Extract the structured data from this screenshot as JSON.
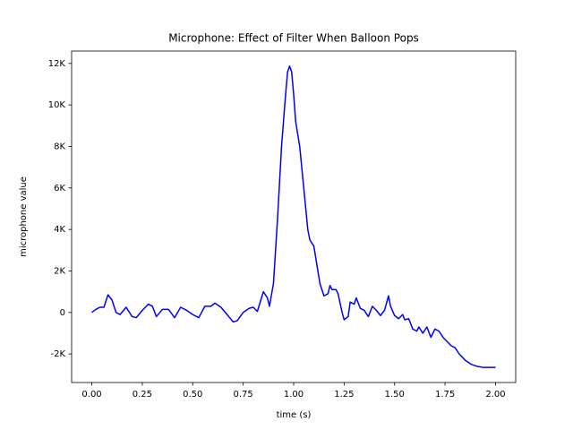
{
  "chart_data": {
    "type": "line",
    "title": "Microphone: Effect of Filter When Balloon Pops",
    "xlabel": "time (s)",
    "ylabel": "microphone value",
    "x": [
      0.0,
      0.02,
      0.04,
      0.06,
      0.08,
      0.1,
      0.12,
      0.14,
      0.17,
      0.2,
      0.22,
      0.25,
      0.28,
      0.3,
      0.32,
      0.35,
      0.38,
      0.41,
      0.44,
      0.47,
      0.5,
      0.53,
      0.56,
      0.59,
      0.61,
      0.64,
      0.67,
      0.7,
      0.72,
      0.75,
      0.78,
      0.8,
      0.82,
      0.85,
      0.87,
      0.88,
      0.9,
      0.92,
      0.94,
      0.96,
      0.97,
      0.98,
      0.99,
      1.0,
      1.01,
      1.03,
      1.05,
      1.07,
      1.08,
      1.1,
      1.12,
      1.13,
      1.15,
      1.17,
      1.18,
      1.19,
      1.21,
      1.22,
      1.24,
      1.25,
      1.27,
      1.28,
      1.3,
      1.31,
      1.33,
      1.35,
      1.37,
      1.39,
      1.41,
      1.43,
      1.45,
      1.47,
      1.48,
      1.5,
      1.52,
      1.54,
      1.55,
      1.57,
      1.59,
      1.61,
      1.62,
      1.64,
      1.66,
      1.68,
      1.7,
      1.72,
      1.74,
      1.76,
      1.78,
      1.8,
      1.82,
      1.85,
      1.88,
      1.91,
      1.94,
      1.97,
      2.0
    ],
    "series": [
      {
        "name": "microphone",
        "color": "#0000ff",
        "values": [
          0,
          150,
          250,
          250,
          850,
          600,
          0,
          -100,
          250,
          -200,
          -250,
          100,
          400,
          300,
          -200,
          150,
          150,
          -250,
          250,
          100,
          -100,
          -250,
          300,
          300,
          450,
          250,
          -100,
          -450,
          -400,
          0,
          200,
          250,
          50,
          1000,
          700,
          300,
          1400,
          4500,
          8000,
          10500,
          11600,
          11870,
          11600,
          10500,
          9200,
          8000,
          6000,
          4000,
          3500,
          3200,
          2000,
          1400,
          800,
          900,
          1300,
          1100,
          1100,
          900,
          0,
          -350,
          -200,
          500,
          400,
          700,
          200,
          100,
          -200,
          300,
          100,
          -150,
          100,
          800,
          300,
          -150,
          -300,
          -100,
          -350,
          -300,
          -800,
          -900,
          -700,
          -1000,
          -700,
          -1200,
          -800,
          -900,
          -1200,
          -1400,
          -1600,
          -1700,
          -2000,
          -2300,
          -2500,
          -2600,
          -2650,
          -2650,
          -2650
        ]
      }
    ],
    "xlim": [
      -0.1,
      2.1
    ],
    "xticks": [
      {
        "value": 0,
        "label": "0.00"
      },
      {
        "value": 0.25,
        "label": "0.25"
      },
      {
        "value": 0.5,
        "label": "0.50"
      },
      {
        "value": 0.75,
        "label": "0.75"
      },
      {
        "value": 1,
        "label": "1.00"
      },
      {
        "value": 1.25,
        "label": "1.25"
      },
      {
        "value": 1.5,
        "label": "1.50"
      },
      {
        "value": 1.75,
        "label": "1.75"
      },
      {
        "value": 2,
        "label": "2.00"
      }
    ],
    "ylim": [
      -3376,
      12596
    ],
    "yticks": [
      {
        "value": -2000,
        "label": "-2K"
      },
      0,
      {
        "value": 2000,
        "label": "2K"
      },
      {
        "value": 4000,
        "label": "4K"
      },
      {
        "value": 6000,
        "label": "6K"
      },
      {
        "value": 8000,
        "label": "8K"
      },
      {
        "value": 10000,
        "label": "10K"
      },
      {
        "value": 12000,
        "label": "12K"
      }
    ],
    "grid": false
  }
}
